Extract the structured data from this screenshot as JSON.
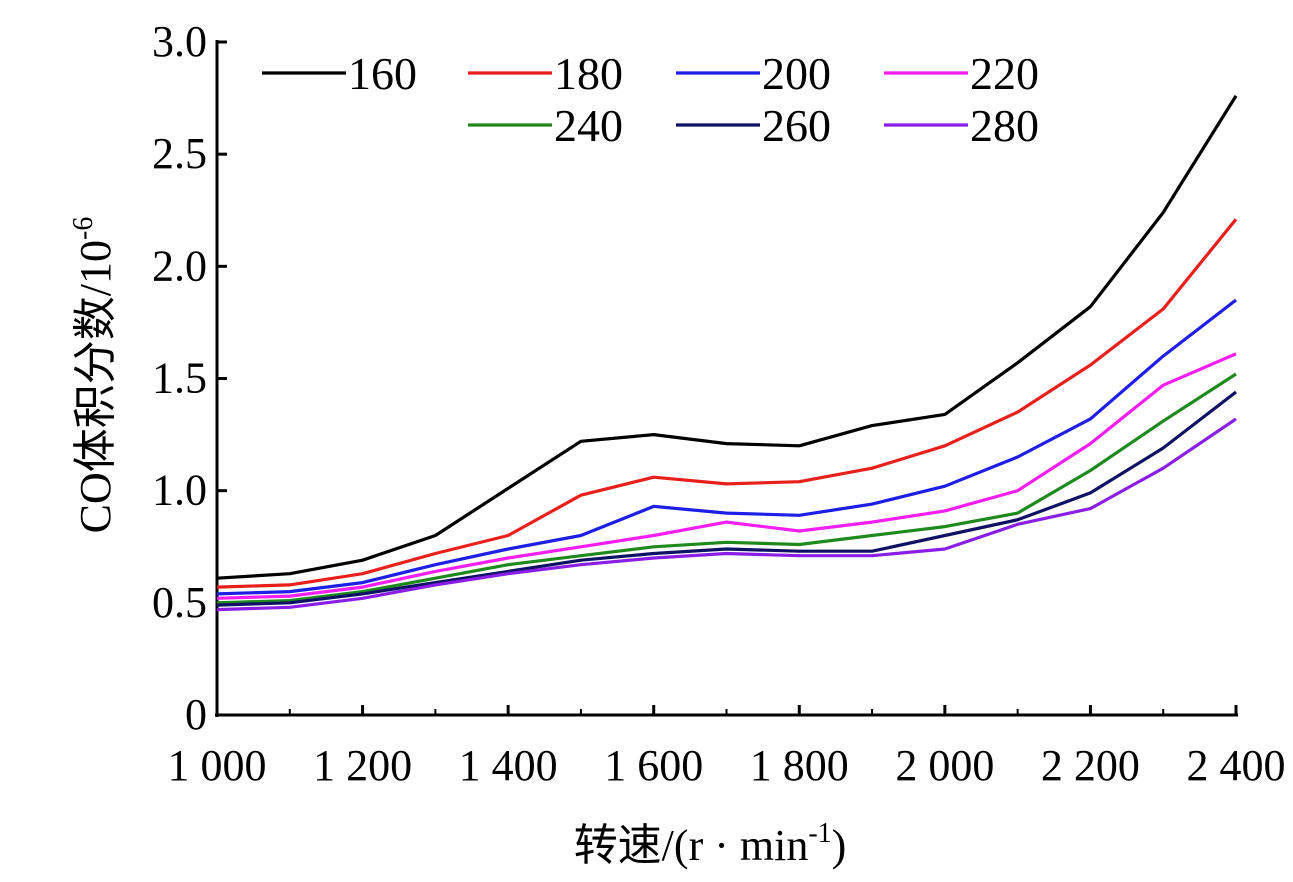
{
  "chart_data": {
    "type": "line",
    "title": "",
    "xlabel": "转速/(r · min",
    "xlabel_sup": "-1",
    "xlabel_end": ")",
    "ylabel": "CO体积分数/10",
    "ylabel_sup": "-6",
    "x": [
      1000,
      1100,
      1200,
      1300,
      1400,
      1500,
      1600,
      1700,
      1800,
      1900,
      2000,
      2100,
      2200,
      2300,
      2400
    ],
    "xlim": [
      1000,
      2400
    ],
    "ylim": [
      0,
      3.0
    ],
    "xticks": [
      1000,
      1200,
      1400,
      1600,
      1800,
      2000,
      2200,
      2400
    ],
    "xtick_labels": [
      "1 000",
      "1 200",
      "1 400",
      "1 600",
      "1 800",
      "2 000",
      "2 200",
      "2 400"
    ],
    "yticks": [
      0,
      0.5,
      1.0,
      1.5,
      2.0,
      2.5,
      3.0
    ],
    "ytick_labels": [
      "0",
      "0.5",
      "1.0",
      "1.5",
      "2.0",
      "2.5",
      "3.0"
    ],
    "grid": false,
    "legend_position": "top",
    "series": [
      {
        "name": "160",
        "color": "#000000",
        "values": [
          0.61,
          0.63,
          0.69,
          0.8,
          1.01,
          1.22,
          1.25,
          1.21,
          1.2,
          1.29,
          1.34,
          1.57,
          1.82,
          2.24,
          2.76
        ]
      },
      {
        "name": "180",
        "color": "#e8201c",
        "values": [
          0.57,
          0.58,
          0.63,
          0.72,
          0.8,
          0.98,
          1.06,
          1.03,
          1.04,
          1.1,
          1.2,
          1.35,
          1.56,
          1.81,
          2.21
        ]
      },
      {
        "name": "200",
        "color": "#1e1ee6",
        "values": [
          0.54,
          0.55,
          0.59,
          0.67,
          0.74,
          0.8,
          0.93,
          0.9,
          0.89,
          0.94,
          1.02,
          1.15,
          1.32,
          1.6,
          1.85
        ]
      },
      {
        "name": "220",
        "color": "#f21ef2",
        "values": [
          0.52,
          0.53,
          0.57,
          0.64,
          0.7,
          0.75,
          0.8,
          0.86,
          0.82,
          0.86,
          0.91,
          1.0,
          1.21,
          1.47,
          1.61
        ]
      },
      {
        "name": "240",
        "color": "#1e8a1e",
        "values": [
          0.5,
          0.51,
          0.55,
          0.61,
          0.67,
          0.71,
          0.75,
          0.77,
          0.76,
          0.8,
          0.84,
          0.9,
          1.09,
          1.31,
          1.52
        ]
      },
      {
        "name": "260",
        "color": "#0f1264",
        "values": [
          0.49,
          0.5,
          0.54,
          0.59,
          0.64,
          0.69,
          0.72,
          0.74,
          0.73,
          0.73,
          0.8,
          0.87,
          0.99,
          1.19,
          1.44
        ]
      },
      {
        "name": "280",
        "color": "#8a1ee6",
        "values": [
          0.47,
          0.48,
          0.52,
          0.58,
          0.63,
          0.67,
          0.7,
          0.72,
          0.71,
          0.71,
          0.74,
          0.85,
          0.92,
          1.1,
          1.32
        ]
      }
    ]
  }
}
